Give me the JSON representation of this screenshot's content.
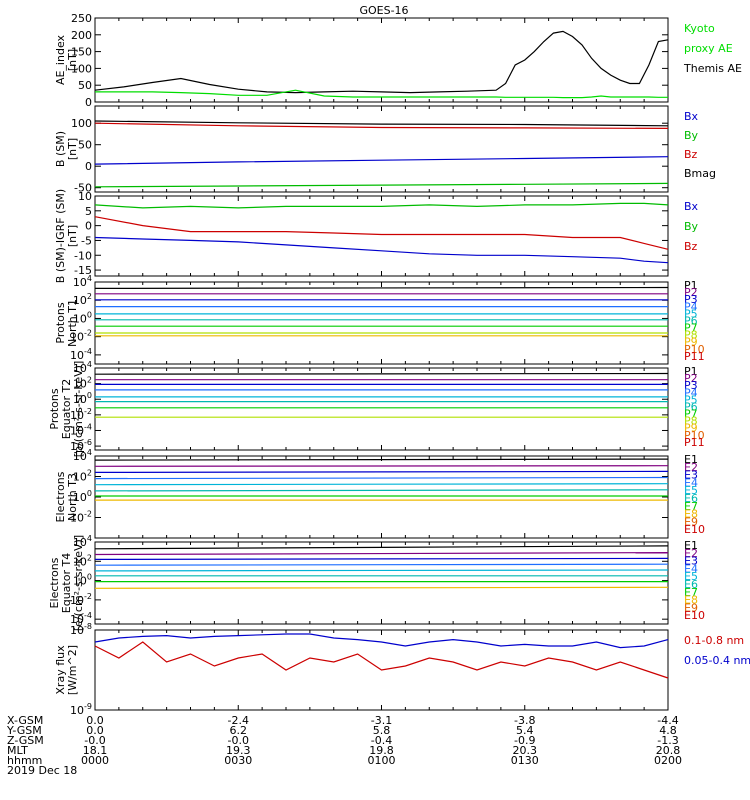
{
  "title": "GOES-16",
  "chart_data": [
    {
      "type": "line",
      "panel": "ae",
      "ylabel": [
        "AE_index",
        "[nT]"
      ],
      "ylim": [
        0,
        250
      ],
      "yticks": [
        "0",
        "50",
        "100",
        "150",
        "200",
        "250"
      ],
      "ytick_values": [
        0,
        50,
        100,
        150,
        200,
        250
      ],
      "legend": [
        {
          "label": "Kyoto",
          "color": "#00dd00"
        },
        {
          "label": "proxy AE",
          "color": "#00dd00"
        },
        {
          "label": "Themis AE",
          "color": "#000000"
        }
      ],
      "x": [
        0,
        6,
        12,
        18,
        24,
        30,
        36,
        42,
        48,
        54,
        60,
        66,
        72,
        78,
        84,
        86,
        88,
        90,
        92,
        94,
        96,
        98,
        100,
        102,
        104,
        106,
        108,
        110,
        112,
        114,
        116,
        118,
        120
      ],
      "series": [
        {
          "name": "Themis AE",
          "color": "#000000",
          "values": [
            35,
            45,
            58,
            70,
            52,
            38,
            30,
            28,
            30,
            32,
            30,
            28,
            30,
            32,
            35,
            55,
            110,
            125,
            150,
            180,
            205,
            210,
            195,
            170,
            130,
            100,
            80,
            65,
            55,
            55,
            110,
            180,
            185
          ]
        },
        {
          "name": "proxy AE",
          "color": "#00dd00",
          "values": [
            30,
            30,
            30,
            28,
            25,
            20,
            20,
            35,
            18,
            15,
            15,
            15,
            15,
            15,
            15,
            14,
            14,
            14,
            14,
            14,
            14,
            13,
            13,
            13,
            15,
            18,
            15,
            15,
            15,
            15,
            15,
            14,
            14
          ]
        }
      ]
    },
    {
      "type": "line",
      "panel": "b_sm",
      "ylabel": [
        "B (SM)",
        "[nT]"
      ],
      "ylim": [
        -60,
        140
      ],
      "yticks": [
        "-50",
        "0",
        "50",
        "100"
      ],
      "ytick_values": [
        -50,
        0,
        50,
        100
      ],
      "legend": [
        {
          "label": "Bx",
          "color": "#0000cc"
        },
        {
          "label": "By",
          "color": "#00bb00"
        },
        {
          "label": "Bz",
          "color": "#cc0000"
        },
        {
          "label": "Bmag",
          "color": "#000000"
        }
      ],
      "x": [
        0,
        30,
        60,
        90,
        120
      ],
      "series": [
        {
          "name": "Bmag",
          "color": "#000000",
          "values": [
            105,
            101,
            98,
            97,
            94
          ]
        },
        {
          "name": "Bz",
          "color": "#cc0000",
          "values": [
            100,
            94,
            90,
            89,
            88
          ]
        },
        {
          "name": "Bx",
          "color": "#0000cc",
          "values": [
            5,
            10,
            14,
            18,
            22
          ]
        },
        {
          "name": "By",
          "color": "#00bb00",
          "values": [
            -48,
            -46,
            -44,
            -42,
            -40
          ]
        }
      ]
    },
    {
      "type": "line",
      "panel": "b_igrf",
      "ylabel": [
        "B (SM)-IGRF (SM)",
        "[nT]"
      ],
      "ylim": [
        -17,
        10
      ],
      "yticks": [
        "-15",
        "-10",
        "-5",
        "0",
        "5",
        "10"
      ],
      "ytick_values": [
        -15,
        -10,
        -5,
        0,
        5,
        10
      ],
      "legend": [
        {
          "label": "Bx",
          "color": "#0000cc"
        },
        {
          "label": "By",
          "color": "#00bb00"
        },
        {
          "label": "Bz",
          "color": "#cc0000"
        }
      ],
      "x": [
        0,
        10,
        20,
        30,
        40,
        50,
        60,
        70,
        80,
        90,
        100,
        110,
        115,
        120
      ],
      "series": [
        {
          "name": "By",
          "color": "#00bb00",
          "values": [
            7,
            6,
            6.5,
            6,
            6.5,
            6.5,
            6.5,
            7,
            6.5,
            7,
            7,
            7.5,
            7.5,
            7
          ]
        },
        {
          "name": "Bz",
          "color": "#cc0000",
          "values": [
            3,
            0,
            -2,
            -2,
            -2,
            -2.5,
            -3,
            -3,
            -3,
            -3,
            -4,
            -4,
            -6,
            -8
          ]
        },
        {
          "name": "Bx",
          "color": "#0000cc",
          "values": [
            -4,
            -4.5,
            -5,
            -5.5,
            -6.5,
            -7.5,
            -8.5,
            -9.5,
            -10,
            -10,
            -10.5,
            -11,
            -12,
            -12.5
          ]
        }
      ]
    },
    {
      "type": "line",
      "panel": "protons_t1",
      "yscale": "log",
      "ylabel": [
        "Protons",
        "North T1"
      ],
      "ylim": [
        -5,
        4
      ],
      "yticks": [
        "10^4",
        "10^2",
        "10^0",
        "10^-2",
        "10^-4"
      ],
      "ytick_values": [
        4,
        2,
        0,
        -2,
        -4
      ],
      "legend": [
        {
          "label": "P1",
          "color": "#000000"
        },
        {
          "label": "P2",
          "color": "#800080"
        },
        {
          "label": "P3",
          "color": "#0000cc"
        },
        {
          "label": "P4",
          "color": "#1e6eff"
        },
        {
          "label": "P5",
          "color": "#00b4d8"
        },
        {
          "label": "P6",
          "color": "#00b8b0"
        },
        {
          "label": "P7",
          "color": "#00cc00"
        },
        {
          "label": "P8",
          "color": "#b0e000"
        },
        {
          "label": "P9",
          "color": "#eeb800"
        },
        {
          "label": "P10",
          "color": "#e06000"
        },
        {
          "label": "P11",
          "color": "#cc0000"
        }
      ],
      "x": [
        0,
        120
      ],
      "series": [
        {
          "name": "P1",
          "color": "#000000",
          "values": [
            3.3,
            3.4
          ]
        },
        {
          "name": "P2",
          "color": "#800080",
          "values": [
            2.7,
            2.7
          ]
        },
        {
          "name": "P3",
          "color": "#0000cc",
          "values": [
            2.05,
            2.05
          ]
        },
        {
          "name": "P4",
          "color": "#1e6eff",
          "values": [
            1.3,
            1.3
          ]
        },
        {
          "name": "P5",
          "color": "#00b4d8",
          "values": [
            0.5,
            0.5
          ]
        },
        {
          "name": "P6",
          "color": "#00b8b0",
          "values": [
            -0.15,
            -0.15
          ]
        },
        {
          "name": "P7",
          "color": "#00cc00",
          "values": [
            -0.85,
            -0.85
          ]
        },
        {
          "name": "P8",
          "color": "#b0e000",
          "values": [
            -1.6,
            -1.6
          ]
        },
        {
          "name": "P9",
          "color": "#eeb800",
          "values": [
            -1.9,
            -1.9
          ]
        }
      ]
    },
    {
      "type": "line",
      "panel": "protons_t2",
      "yscale": "log",
      "ylabel": [
        "Protons",
        "Equator T2",
        "[p/(cm²-s-sr-keV)]"
      ],
      "ylim": [
        -6.5,
        4
      ],
      "yticks": [
        "10^4",
        "10^2",
        "10^0",
        "10^-2",
        "10^-4",
        "10^-6"
      ],
      "ytick_values": [
        4,
        2,
        0,
        -2,
        -4,
        -6
      ],
      "legend": [
        {
          "label": "P1",
          "color": "#000000"
        },
        {
          "label": "P2",
          "color": "#800080"
        },
        {
          "label": "P3",
          "color": "#0000cc"
        },
        {
          "label": "P4",
          "color": "#1e6eff"
        },
        {
          "label": "P5",
          "color": "#00b4d8"
        },
        {
          "label": "P6",
          "color": "#00b8b0"
        },
        {
          "label": "P7",
          "color": "#00cc00"
        },
        {
          "label": "P8",
          "color": "#b0e000"
        },
        {
          "label": "P9",
          "color": "#eeb800"
        },
        {
          "label": "P10",
          "color": "#e06000"
        },
        {
          "label": "P11",
          "color": "#cc0000"
        }
      ],
      "x": [
        0,
        120
      ],
      "series": [
        {
          "name": "P1",
          "color": "#000000",
          "values": [
            3.2,
            3.3
          ]
        },
        {
          "name": "P2",
          "color": "#800080",
          "values": [
            2.5,
            2.5
          ]
        },
        {
          "name": "P3",
          "color": "#0000cc",
          "values": [
            1.9,
            1.9
          ]
        },
        {
          "name": "P4",
          "color": "#1e6eff",
          "values": [
            1.2,
            1.2
          ]
        },
        {
          "name": "P5",
          "color": "#00b4d8",
          "values": [
            0.3,
            0.3
          ]
        },
        {
          "name": "P6",
          "color": "#00b8b0",
          "values": [
            -0.3,
            -0.3
          ]
        },
        {
          "name": "P7",
          "color": "#00cc00",
          "values": [
            -1.1,
            -1.1
          ]
        },
        {
          "name": "P8",
          "color": "#b0e000",
          "values": [
            -2.3,
            -2.3
          ]
        }
      ]
    },
    {
      "type": "line",
      "panel": "electrons_t3",
      "yscale": "log",
      "ylabel": [
        "Electrons",
        "North T3"
      ],
      "ylim": [
        -4,
        4
      ],
      "yticks": [
        "10^4",
        "10^2",
        "10^0",
        "10^-2"
      ],
      "ytick_values": [
        4,
        2,
        0,
        -2
      ],
      "legend": [
        {
          "label": "E1",
          "color": "#000000"
        },
        {
          "label": "E2",
          "color": "#800080"
        },
        {
          "label": "E3",
          "color": "#0000cc"
        },
        {
          "label": "E4",
          "color": "#1e6eff"
        },
        {
          "label": "E5",
          "color": "#00b4d8"
        },
        {
          "label": "E6",
          "color": "#00b8b0"
        },
        {
          "label": "E7",
          "color": "#00cc00"
        },
        {
          "label": "E8",
          "color": "#eeb800"
        },
        {
          "label": "E9",
          "color": "#e06000"
        },
        {
          "label": "E10",
          "color": "#cc0000"
        }
      ],
      "x": [
        0,
        120
      ],
      "series": [
        {
          "name": "E1",
          "color": "#000000",
          "values": [
            3.6,
            3.7
          ]
        },
        {
          "name": "E2",
          "color": "#800080",
          "values": [
            3.0,
            3.05
          ]
        },
        {
          "name": "E3",
          "color": "#0000cc",
          "values": [
            2.4,
            2.5
          ]
        },
        {
          "name": "E4",
          "color": "#1e6eff",
          "values": [
            1.8,
            1.9
          ]
        },
        {
          "name": "E5",
          "color": "#00b4d8",
          "values": [
            1.2,
            1.3
          ]
        },
        {
          "name": "E6",
          "color": "#00b8b0",
          "values": [
            0.6,
            0.7
          ]
        },
        {
          "name": "E7",
          "color": "#00cc00",
          "values": [
            0.1,
            0.1
          ]
        },
        {
          "name": "E8",
          "color": "#eeb800",
          "values": [
            -0.3,
            -0.3
          ]
        }
      ]
    },
    {
      "type": "line",
      "panel": "electrons_t4",
      "yscale": "log",
      "ylabel": [
        "Electrons",
        "Equator T4",
        "[e/(cm²-s-sr-keV)]"
      ],
      "ylim": [
        -4.5,
        4
      ],
      "yticks": [
        "10^4",
        "10^2",
        "10^0",
        "10^-2",
        "10^-4"
      ],
      "ytick_values": [
        4,
        2,
        0,
        -2,
        -4
      ],
      "legend": [
        {
          "label": "E1",
          "color": "#000000"
        },
        {
          "label": "E2",
          "color": "#800080"
        },
        {
          "label": "E3",
          "color": "#0000cc"
        },
        {
          "label": "E4",
          "color": "#1e6eff"
        },
        {
          "label": "E5",
          "color": "#00b4d8"
        },
        {
          "label": "E6",
          "color": "#00b8b0"
        },
        {
          "label": "E7",
          "color": "#00cc00"
        },
        {
          "label": "E8",
          "color": "#eeb800"
        },
        {
          "label": "E9",
          "color": "#e06000"
        },
        {
          "label": "E10",
          "color": "#cc0000"
        }
      ],
      "x": [
        0,
        120
      ],
      "series": [
        {
          "name": "E1",
          "color": "#000000",
          "values": [
            3.3,
            3.6
          ]
        },
        {
          "name": "E2",
          "color": "#800080",
          "values": [
            2.7,
            2.9
          ]
        },
        {
          "name": "E3",
          "color": "#0000cc",
          "values": [
            2.2,
            2.3
          ]
        },
        {
          "name": "E4",
          "color": "#1e6eff",
          "values": [
            1.6,
            1.7
          ]
        },
        {
          "name": "E5",
          "color": "#00b4d8",
          "values": [
            1.0,
            1.1
          ]
        },
        {
          "name": "E6",
          "color": "#00b8b0",
          "values": [
            0.5,
            0.5
          ]
        },
        {
          "name": "E7",
          "color": "#00cc00",
          "values": [
            -0.1,
            -0.1
          ]
        },
        {
          "name": "E8",
          "color": "#eeb800",
          "values": [
            -0.8,
            -0.7
          ]
        }
      ]
    },
    {
      "type": "line",
      "panel": "xray",
      "yscale": "log",
      "ylabel": [
        "Xray flux",
        "[W/m^2]"
      ],
      "ylim": [
        -9,
        -8
      ],
      "yticks": [
        "10^-8",
        "10^-9"
      ],
      "ytick_values": [
        -8,
        -9
      ],
      "legend": [
        {
          "label": "0.1-0.8 nm",
          "color": "#cc0000"
        },
        {
          "label": "0.05-0.4 nm",
          "color": "#0000cc"
        }
      ],
      "x": [
        0,
        5,
        10,
        15,
        20,
        25,
        30,
        35,
        40,
        45,
        50,
        55,
        60,
        65,
        70,
        75,
        80,
        85,
        90,
        95,
        100,
        105,
        110,
        115,
        120
      ],
      "series": [
        {
          "name": "0.05-0.4 nm",
          "color": "#0000cc",
          "values": [
            -8.15,
            -8.1,
            -8.08,
            -8.07,
            -8.1,
            -8.08,
            -8.07,
            -8.06,
            -8.05,
            -8.05,
            -8.1,
            -8.12,
            -8.15,
            -8.2,
            -8.15,
            -8.12,
            -8.15,
            -8.2,
            -8.18,
            -8.2,
            -8.2,
            -8.15,
            -8.22,
            -8.2,
            -8.12
          ]
        },
        {
          "name": "0.1-0.8 nm",
          "color": "#cc0000",
          "values": [
            -8.2,
            -8.35,
            -8.15,
            -8.4,
            -8.3,
            -8.45,
            -8.35,
            -8.3,
            -8.5,
            -8.35,
            -8.4,
            -8.3,
            -8.5,
            -8.45,
            -8.35,
            -8.4,
            -8.5,
            -8.4,
            -8.45,
            -8.35,
            -8.4,
            -8.5,
            -8.4,
            -8.5,
            -8.6
          ]
        }
      ]
    }
  ],
  "footer": {
    "row_labels": [
      "X-GSM",
      "Y-GSM",
      "Z-GSM",
      "MLT",
      "hhmm",
      "2019 Dec 18"
    ],
    "columns": [
      {
        "x": 0,
        "values": [
          "0.0",
          "0.0",
          "-0.0",
          "18.1",
          "0000"
        ]
      },
      {
        "x": 30,
        "values": [
          "-2.4",
          "6.2",
          "-0.0",
          "19.3",
          "0030"
        ]
      },
      {
        "x": 60,
        "values": [
          "-3.1",
          "5.8",
          "-0.4",
          "19.8",
          "0100"
        ]
      },
      {
        "x": 90,
        "values": [
          "-3.8",
          "5.4",
          "-0.9",
          "20.3",
          "0130"
        ]
      },
      {
        "x": 120,
        "values": [
          "-4.4",
          "4.8",
          "-1.3",
          "20.8",
          "0200"
        ]
      }
    ]
  }
}
